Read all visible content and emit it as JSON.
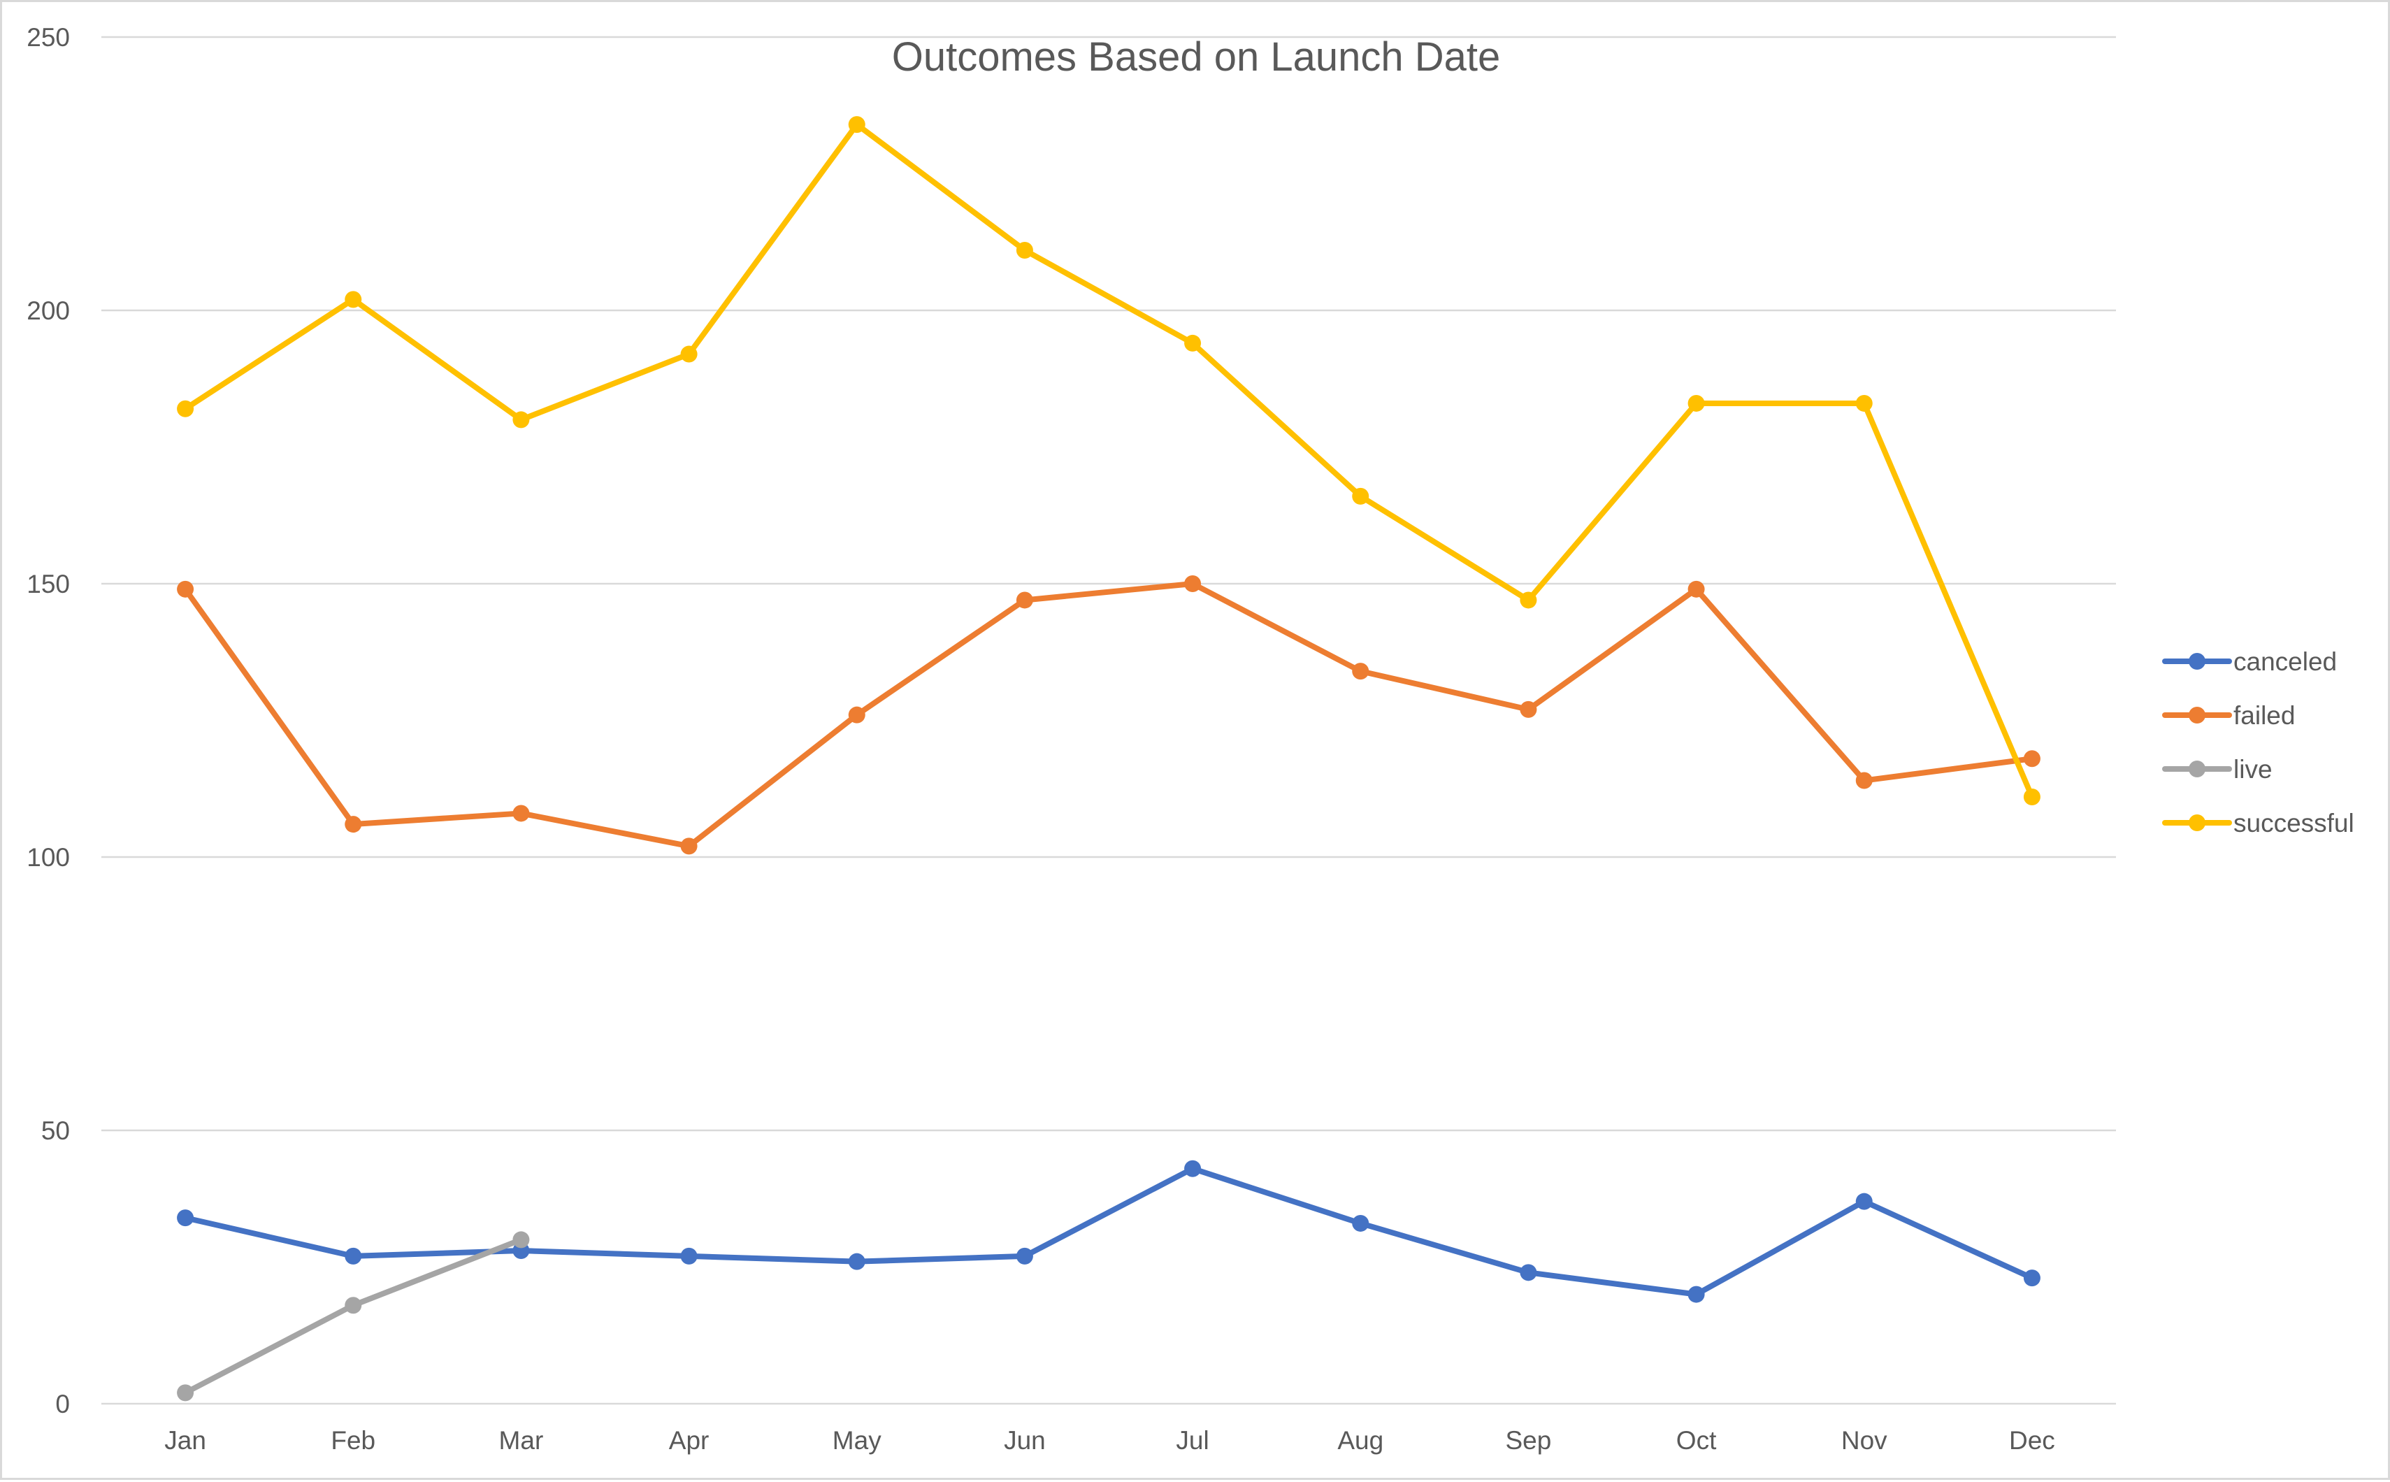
{
  "chart_data": {
    "type": "line",
    "title": "Outcomes Based on Launch Date",
    "xlabel": "",
    "ylabel": "",
    "categories": [
      "Jan",
      "Feb",
      "Mar",
      "Apr",
      "May",
      "Jun",
      "Jul",
      "Aug",
      "Sep",
      "Oct",
      "Nov",
      "Dec"
    ],
    "ylim": [
      0,
      250
    ],
    "yticks": [
      "0",
      "50",
      "100",
      "150",
      "200",
      "250"
    ],
    "grid": true,
    "legend_position": "right",
    "series": [
      {
        "name": "canceled",
        "color": "#4472C4",
        "values": [
          34,
          27,
          28,
          27,
          26,
          27,
          43,
          33,
          24,
          20,
          37,
          23
        ]
      },
      {
        "name": "failed",
        "color": "#ED7D31",
        "values": [
          149,
          106,
          108,
          102,
          126,
          147,
          150,
          134,
          127,
          149,
          114,
          118
        ]
      },
      {
        "name": "live",
        "color": "#A5A5A5",
        "values": [
          2,
          18,
          30,
          null,
          null,
          null,
          null,
          null,
          null,
          null,
          null,
          null
        ]
      },
      {
        "name": "successful",
        "color": "#FFC000",
        "values": [
          182,
          202,
          180,
          192,
          234,
          211,
          194,
          166,
          147,
          183,
          183,
          111
        ]
      }
    ]
  }
}
